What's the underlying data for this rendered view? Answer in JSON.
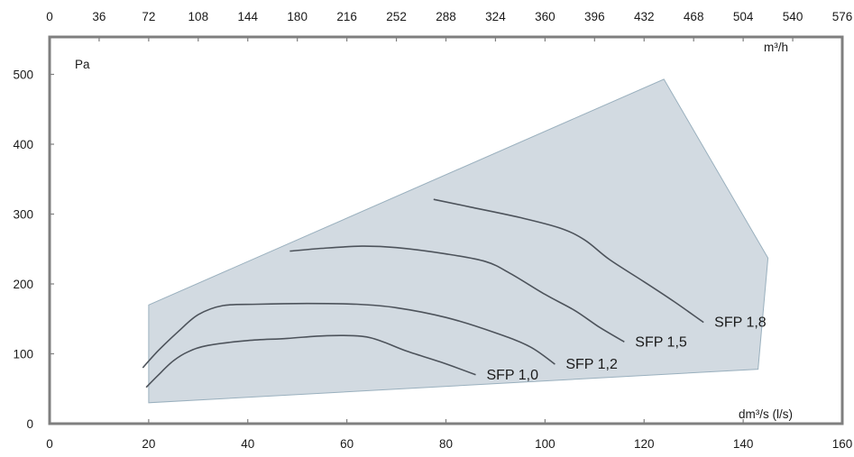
{
  "chart_data": {
    "type": "line",
    "title": "",
    "xlabel": "dm³/s (l/s)",
    "x2label": "m³/h",
    "ylabel": "Pa",
    "xlim": [
      0,
      160
    ],
    "x2lim": [
      0,
      576
    ],
    "ylim": [
      0,
      540
    ],
    "x_ticks": [
      0,
      20,
      40,
      60,
      80,
      100,
      120,
      140,
      160
    ],
    "x2_ticks": [
      0,
      36,
      72,
      108,
      144,
      180,
      216,
      252,
      288,
      324,
      360,
      396,
      432,
      468,
      504,
      540,
      576
    ],
    "y_ticks": [
      0,
      100,
      200,
      300,
      400,
      500
    ],
    "grid": false,
    "operating_area": {
      "points": [
        [
          20,
          170
        ],
        [
          124,
          493
        ],
        [
          145,
          237
        ],
        [
          143,
          78
        ],
        [
          20,
          30
        ]
      ],
      "fill": "#d2dae1",
      "stroke": "#9ab0be"
    },
    "series": [
      {
        "name": "SFP 1,0",
        "label": "SFP 1,0",
        "points": [
          [
            19.5,
            52
          ],
          [
            22,
            70
          ],
          [
            25,
            90
          ],
          [
            28,
            103
          ],
          [
            32,
            112
          ],
          [
            40,
            119
          ],
          [
            48,
            122
          ],
          [
            56,
            126
          ],
          [
            63,
            125
          ],
          [
            67,
            118
          ],
          [
            72,
            104
          ],
          [
            79,
            88
          ],
          [
            86,
            70
          ]
        ]
      },
      {
        "name": "SFP 1,2",
        "label": "SFP 1,2",
        "points": [
          [
            18.8,
            80
          ],
          [
            22,
            105
          ],
          [
            26,
            132
          ],
          [
            30,
            156
          ],
          [
            35,
            169
          ],
          [
            42,
            171
          ],
          [
            52,
            172
          ],
          [
            62,
            171
          ],
          [
            70,
            166
          ],
          [
            80,
            152
          ],
          [
            90,
            130
          ],
          [
            97,
            110
          ],
          [
            102,
            85
          ]
        ]
      },
      {
        "name": "SFP 1,5",
        "label": "SFP 1,5",
        "points": [
          [
            48.5,
            247
          ],
          [
            55,
            251
          ],
          [
            63,
            254
          ],
          [
            70,
            252
          ],
          [
            80,
            243
          ],
          [
            88,
            232
          ],
          [
            93,
            215
          ],
          [
            100,
            185
          ],
          [
            106,
            162
          ],
          [
            111,
            138
          ],
          [
            116,
            117
          ]
        ]
      },
      {
        "name": "SFP 1,8",
        "label": "SFP 1,8",
        "points": [
          [
            77.5,
            321
          ],
          [
            85,
            310
          ],
          [
            95,
            295
          ],
          [
            103,
            280
          ],
          [
            108,
            263
          ],
          [
            113,
            235
          ],
          [
            120,
            203
          ],
          [
            126,
            175
          ],
          [
            132,
            145
          ]
        ]
      }
    ],
    "line_color": "#4d535b"
  }
}
